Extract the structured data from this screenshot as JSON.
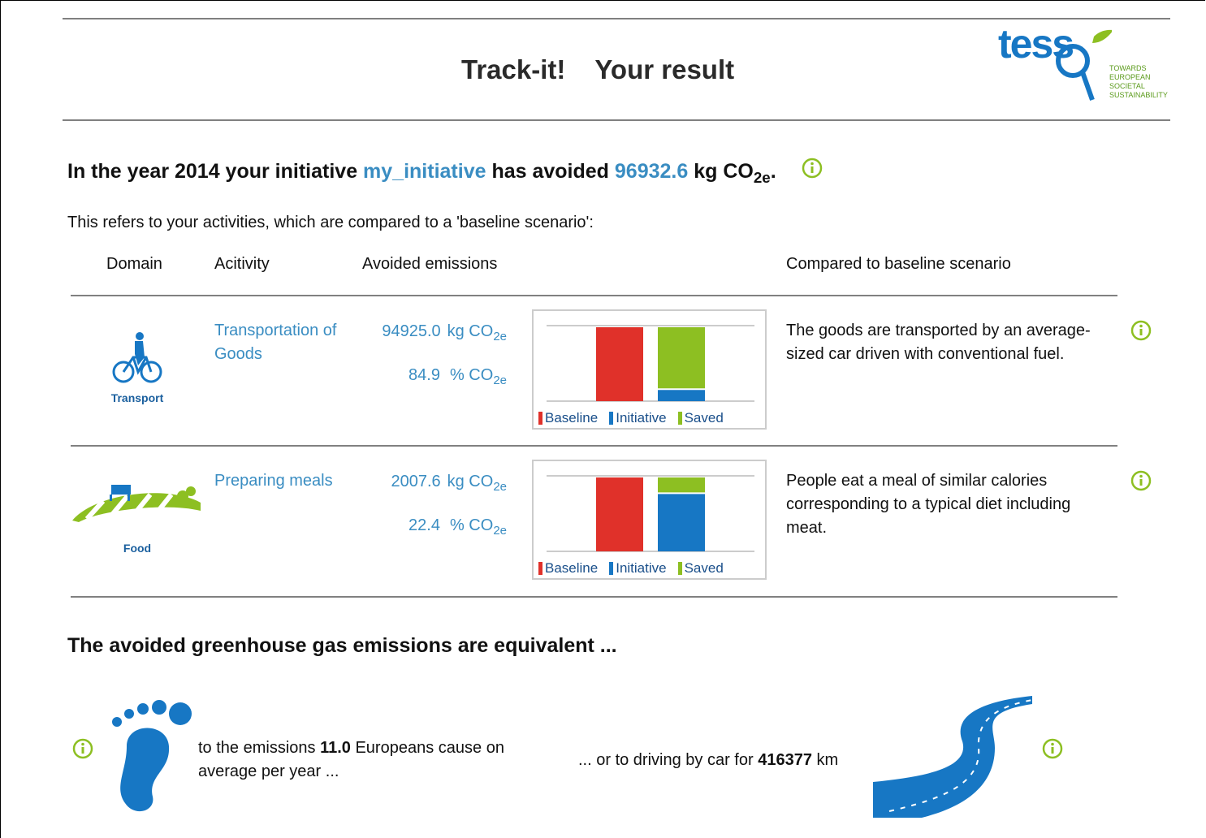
{
  "header": {
    "title": "Track-it!",
    "subtitle": "Your result",
    "logo": {
      "text": "tess",
      "tagline": [
        "TOWARDS",
        "EUROPEAN",
        "SOCIETAL",
        "SUSTAINABILITY"
      ]
    }
  },
  "summary": {
    "prefix": "In the year 2014 your initiative",
    "initiative": "my_initiative",
    "middle": "has avoided",
    "amount": "96932.6",
    "unit": "kg CO",
    "unit_sub": "2e",
    "end": "."
  },
  "intro": "This refers to your activities, which are compared to a 'baseline scenario':",
  "table": {
    "headers": [
      "Domain",
      "Acitivity",
      "Avoided emissions",
      "Compared to baseline scenario"
    ],
    "rows": [
      {
        "domain": "Transport",
        "activity": "Transportation of Goods",
        "kg": "94925.0",
        "kg_unit": "kg CO",
        "percent": "84.9",
        "percent_unit": "% CO",
        "sub": "2e",
        "description": "The goods are transported by an average-sized car driven with conventional fuel.",
        "chart": {
          "baseline": 100,
          "initiative": 15.1,
          "saved": 84.9
        }
      },
      {
        "domain": "Food",
        "activity": "Preparing meals",
        "kg": "2007.6",
        "kg_unit": "kg CO",
        "percent": "22.4",
        "percent_unit": "% CO",
        "sub": "2e",
        "description": "People eat a meal of similar calories corresponding to a typical diet including meat.",
        "chart": {
          "baseline": 100,
          "initiative": 77.6,
          "saved": 22.4
        }
      }
    ],
    "legend": [
      {
        "name": "Baseline",
        "color": "#e0312a"
      },
      {
        "name": "Initiative",
        "color": "#1777c4"
      },
      {
        "name": "Saved",
        "color": "#8dbf22"
      }
    ]
  },
  "equivalent": {
    "title": "The avoided greenhouse gas emissions are equivalent ...",
    "people": {
      "prefix": "to the emissions",
      "value": "11.0",
      "suffix": "Europeans cause on average per year ..."
    },
    "driving": {
      "prefix": "... or to driving by car for",
      "value": "416377",
      "unit": "km"
    }
  }
}
